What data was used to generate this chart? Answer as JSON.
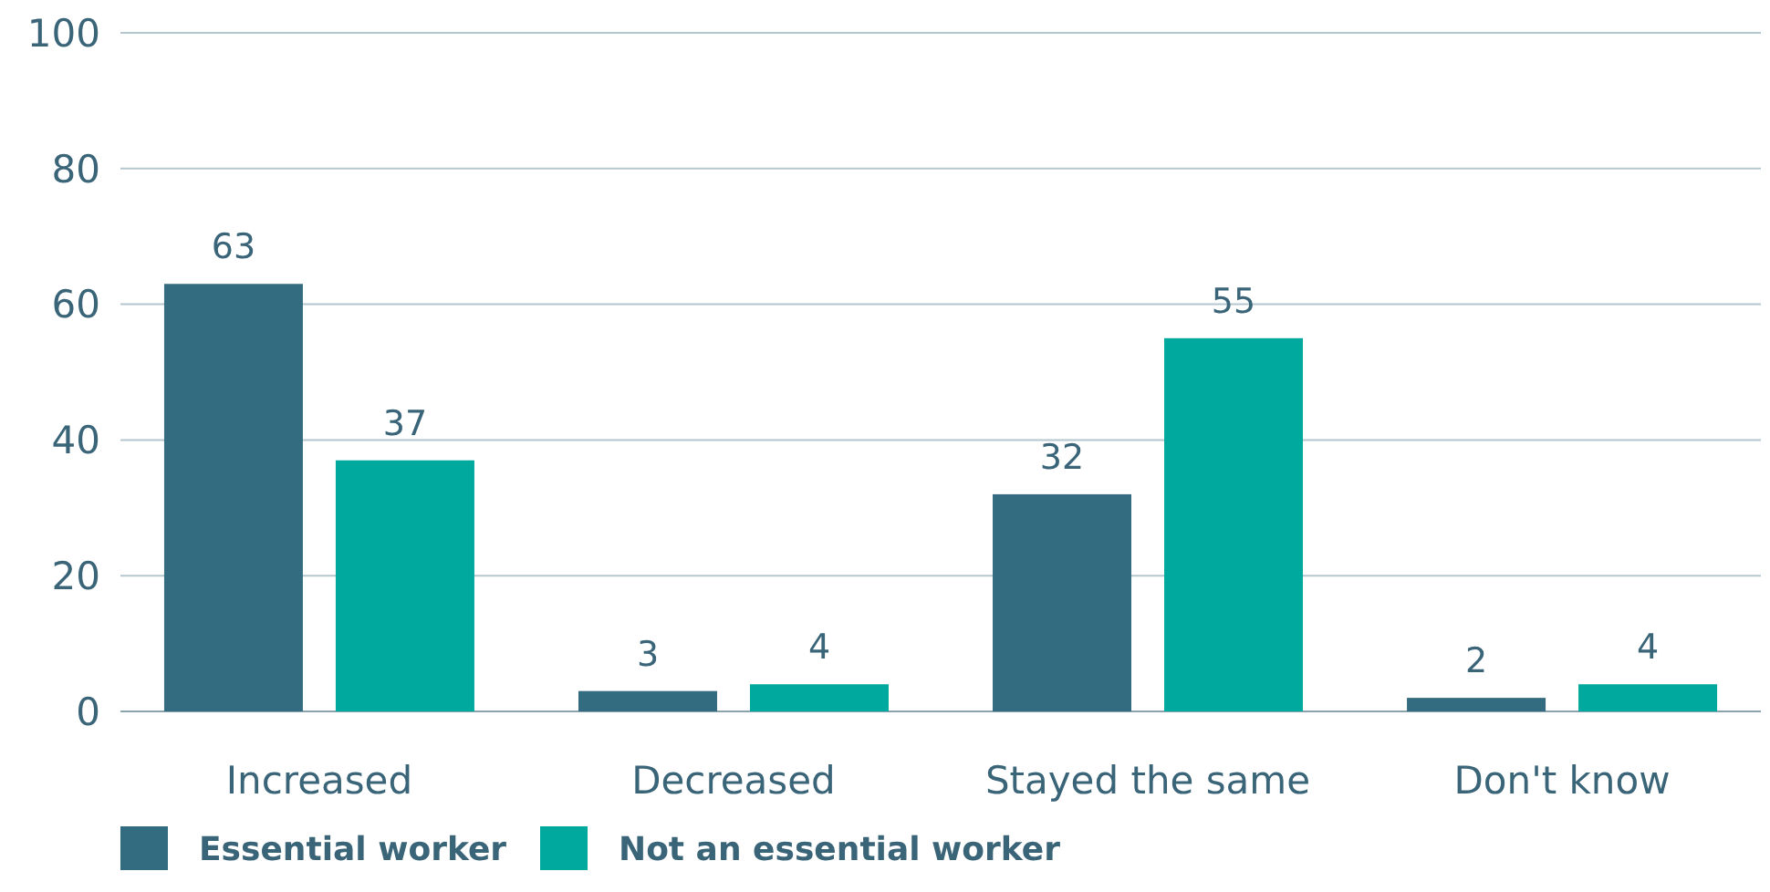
{
  "chart_data": {
    "type": "bar",
    "categories": [
      "Increased",
      "Decreased",
      "Stayed the same",
      "Don't know"
    ],
    "series": [
      {
        "name": "Essential worker",
        "color": "#336b80",
        "values": [
          63,
          3,
          32,
          2
        ]
      },
      {
        "name": "Not an essential worker",
        "color": "#00a99d",
        "values": [
          37,
          4,
          55,
          4
        ]
      }
    ],
    "ylim": [
      0,
      100
    ],
    "yticks": [
      0,
      20,
      40,
      60,
      80,
      100
    ],
    "grid": "y",
    "data_labels": true,
    "legend": "bottom left"
  }
}
